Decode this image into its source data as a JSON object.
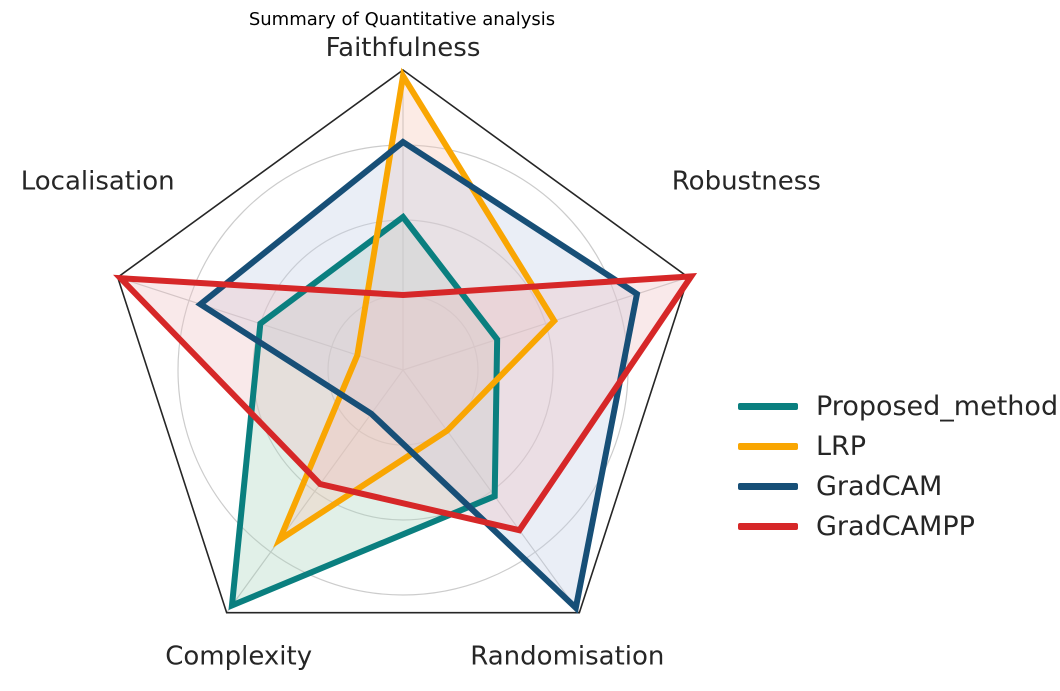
{
  "chart_data": {
    "type": "radar",
    "title": "Summary of Quantitative analysis",
    "axes": [
      "Faithfulness",
      "Robustness",
      "Randomisation",
      "Complexity",
      "Localisation"
    ],
    "rlim": [
      0,
      1
    ],
    "rings": [
      0.25,
      0.5,
      0.75
    ],
    "grid": true,
    "legend_position": "right",
    "series": [
      {
        "name": "Proposed_method",
        "color": "#0a7f7f",
        "fill": "#a8d5bd",
        "values": [
          0.51,
          0.33,
          0.52,
          0.97,
          0.5
        ]
      },
      {
        "name": "LRP",
        "color": "#f9a602",
        "fill": "#f5c6b4",
        "values": [
          0.98,
          0.53,
          0.25,
          0.7,
          0.16
        ]
      },
      {
        "name": "GradCAM",
        "color": "#174f77",
        "fill": "#c3cde6",
        "values": [
          0.76,
          0.82,
          0.98,
          0.18,
          0.71
        ]
      },
      {
        "name": "GradCAMPP",
        "color": "#d62728",
        "fill": "#eec0c2",
        "values": [
          0.25,
          1.01,
          0.66,
          0.47,
          0.99
        ]
      }
    ]
  }
}
